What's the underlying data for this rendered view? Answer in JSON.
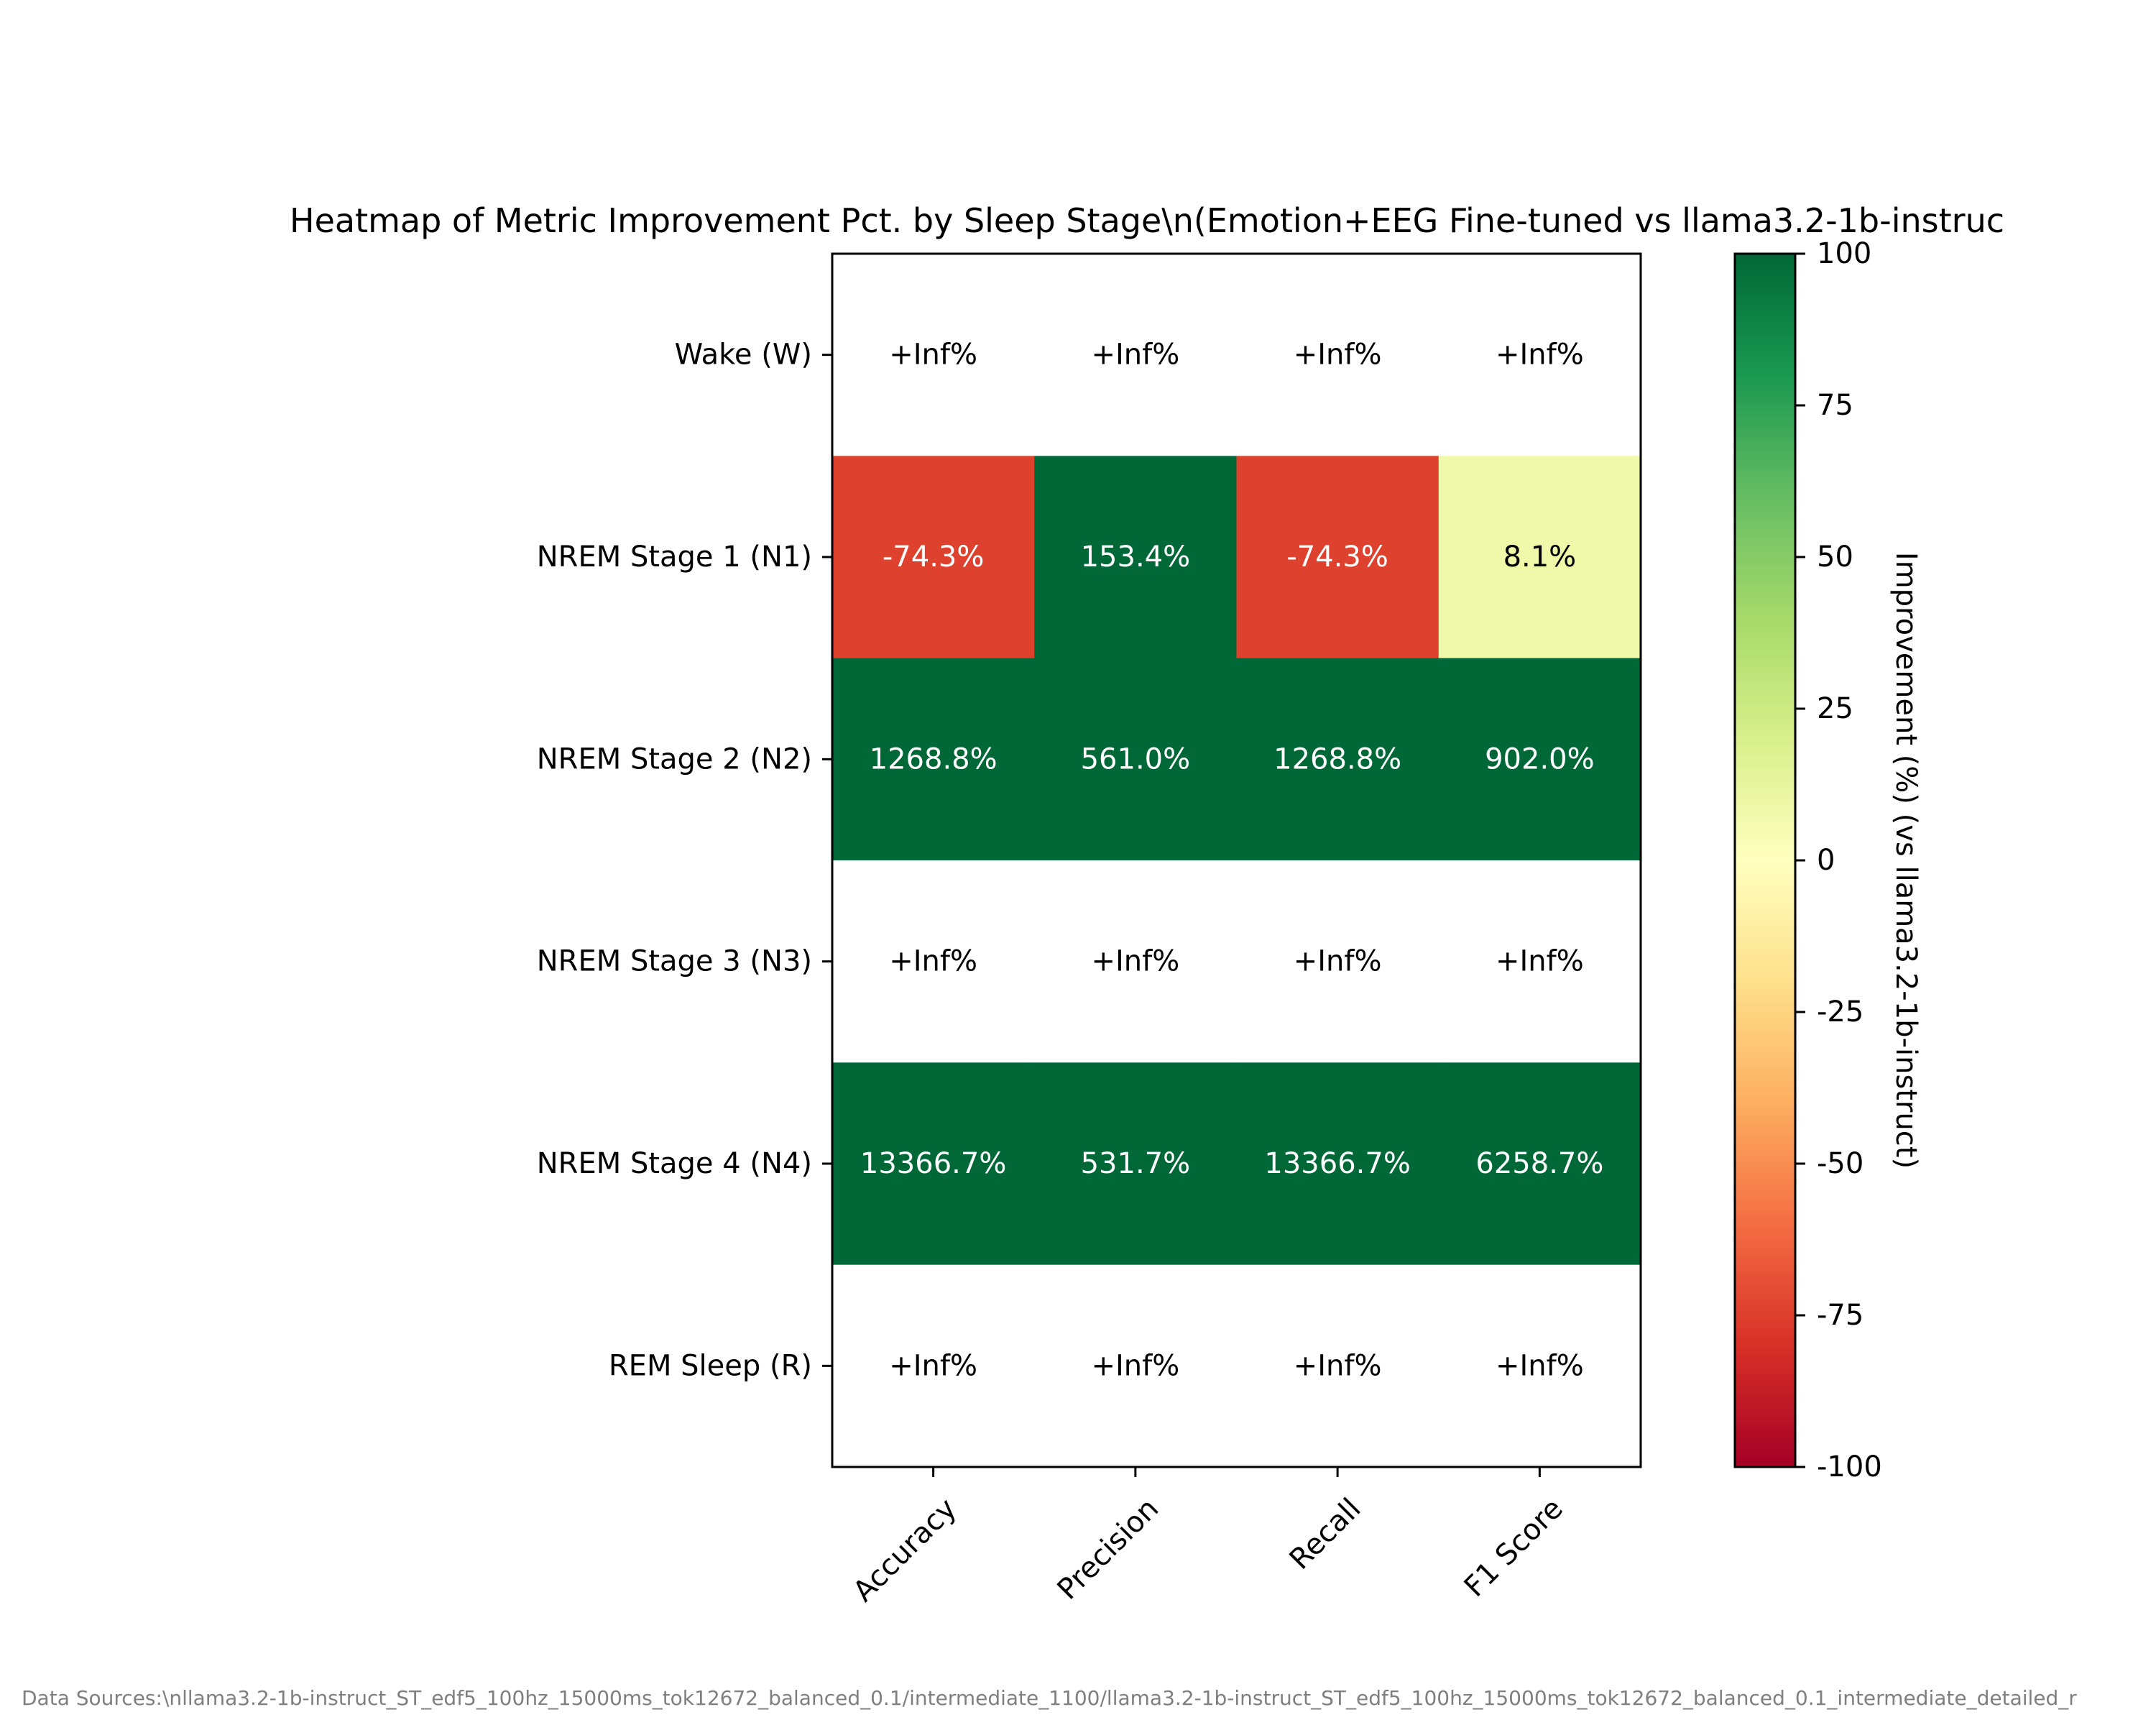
{
  "chart_data": {
    "type": "heatmap",
    "title": "Heatmap of Metric Improvement Pct. by Sleep Stage\\n(Emotion+EEG Fine-tuned vs llama3.2-1b-instruc",
    "rows": [
      "Wake (W)",
      "NREM Stage 1 (N1)",
      "NREM Stage 2 (N2)",
      "NREM Stage 3 (N3)",
      "NREM Stage 4 (N4)",
      "REM Sleep (R)"
    ],
    "columns": [
      "Accuracy",
      "Precision",
      "Recall",
      "F1 Score"
    ],
    "values": [
      [
        null,
        null,
        null,
        null
      ],
      [
        -74.3,
        153.4,
        -74.3,
        8.1
      ],
      [
        1268.8,
        561.0,
        1268.8,
        902.0
      ],
      [
        null,
        null,
        null,
        null
      ],
      [
        13366.7,
        531.7,
        13366.7,
        6258.7
      ],
      [
        null,
        null,
        null,
        null
      ]
    ],
    "cell_labels": [
      [
        "+Inf%",
        "+Inf%",
        "+Inf%",
        "+Inf%"
      ],
      [
        "-74.3%",
        "153.4%",
        "-74.3%",
        "8.1%"
      ],
      [
        "1268.8%",
        "561.0%",
        "1268.8%",
        "902.0%"
      ],
      [
        "+Inf%",
        "+Inf%",
        "+Inf%",
        "+Inf%"
      ],
      [
        "13366.7%",
        "531.7%",
        "13366.7%",
        "6258.7%"
      ],
      [
        "+Inf%",
        "+Inf%",
        "+Inf%",
        "+Inf%"
      ]
    ],
    "colorbar": {
      "label": "Improvement (%) (vs llama3.2-1b-instruct)",
      "range": [
        -100,
        100
      ],
      "ticks": [
        -100,
        -75,
        -50,
        -25,
        0,
        25,
        50,
        75,
        100
      ],
      "tick_labels": [
        "-100",
        "-75",
        "-50",
        "-25",
        "0",
        "25",
        "50",
        "75",
        "100"
      ],
      "colormap": "RdYlGn"
    },
    "footer": "Data Sources:\\nllama3.2-1b-instruct_ST_edf5_100hz_15000ms_tok12672_balanced_0.1/intermediate_1100/llama3.2-1b-instruct_ST_edf5_100hz_15000ms_tok12672_balanced_0.1_intermediate_detailed_r"
  }
}
